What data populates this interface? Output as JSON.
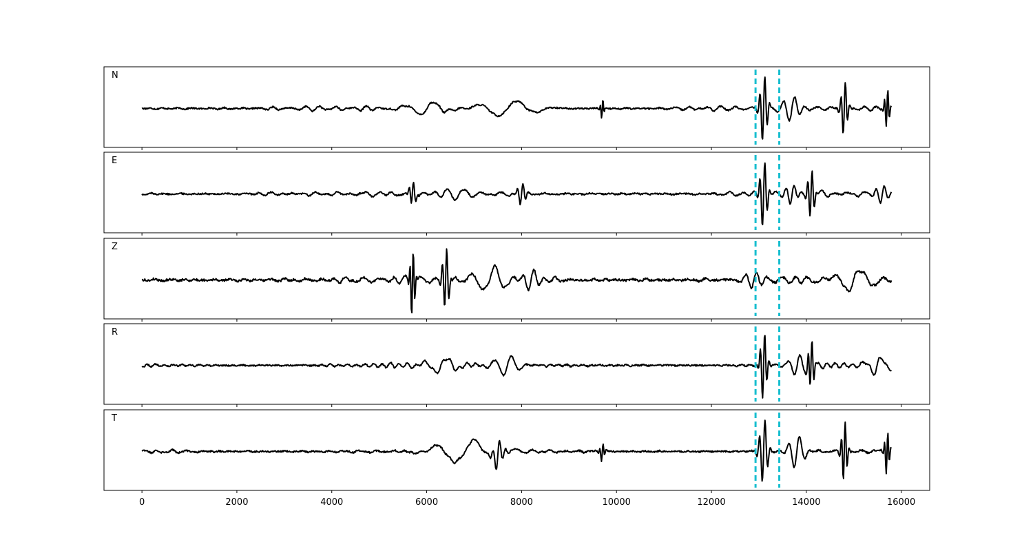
{
  "chart_data": {
    "type": "line",
    "title": "",
    "xlabel": "",
    "ylabel": "",
    "xlim": [
      -800,
      16600
    ],
    "x_ticks": [
      0,
      2000,
      4000,
      6000,
      8000,
      10000,
      12000,
      14000,
      16000
    ],
    "x_tick_labels": [
      "0",
      "2000",
      "4000",
      "6000",
      "8000",
      "10000",
      "12000",
      "14000",
      "16000"
    ],
    "shared_x_axis": true,
    "grid": false,
    "legend": "none",
    "trace_color": "#000000",
    "marker_color": "#17becf",
    "vertical_markers": [
      12930,
      13430
    ],
    "sample_count": 15800,
    "panels": [
      {
        "label": "N",
        "noise_amplitude": 0.08,
        "features": [
          {
            "x": 6000,
            "amp": 0.18,
            "width": 500
          },
          {
            "x": 7700,
            "amp": 0.22,
            "width": 700
          },
          {
            "x": 9700,
            "amp": 0.28,
            "width": 40
          },
          {
            "x": 13100,
            "amp": 0.95,
            "width": 90
          },
          {
            "x": 13700,
            "amp": 0.35,
            "width": 200
          },
          {
            "x": 14800,
            "amp": 0.75,
            "width": 80
          },
          {
            "x": 15700,
            "amp": 0.55,
            "width": 60
          }
        ]
      },
      {
        "label": "E",
        "noise_amplitude": 0.08,
        "features": [
          {
            "x": 5700,
            "amp": 0.32,
            "width": 80
          },
          {
            "x": 6700,
            "amp": 0.22,
            "width": 300
          },
          {
            "x": 8000,
            "amp": 0.3,
            "width": 100
          },
          {
            "x": 13100,
            "amp": 0.95,
            "width": 90
          },
          {
            "x": 13700,
            "amp": 0.3,
            "width": 150
          },
          {
            "x": 14100,
            "amp": 0.7,
            "width": 80
          },
          {
            "x": 15600,
            "amp": 0.25,
            "width": 150
          }
        ]
      },
      {
        "label": "Z",
        "noise_amplitude": 0.12,
        "features": [
          {
            "x": 5700,
            "amp": 0.95,
            "width": 60
          },
          {
            "x": 6400,
            "amp": 0.9,
            "width": 80
          },
          {
            "x": 7300,
            "amp": 0.35,
            "width": 400
          },
          {
            "x": 8200,
            "amp": 0.3,
            "width": 200
          },
          {
            "x": 12900,
            "amp": 0.2,
            "width": 200
          },
          {
            "x": 15000,
            "amp": 0.28,
            "width": 500
          }
        ]
      },
      {
        "label": "R",
        "noise_amplitude": 0.08,
        "features": [
          {
            "x": 6300,
            "amp": 0.22,
            "width": 400
          },
          {
            "x": 7700,
            "amp": 0.28,
            "width": 300
          },
          {
            "x": 13100,
            "amp": 0.95,
            "width": 80
          },
          {
            "x": 13800,
            "amp": 0.3,
            "width": 200
          },
          {
            "x": 14100,
            "amp": 0.72,
            "width": 70
          },
          {
            "x": 15500,
            "amp": 0.25,
            "width": 300
          }
        ]
      },
      {
        "label": "T",
        "noise_amplitude": 0.09,
        "features": [
          {
            "x": 6800,
            "amp": 0.32,
            "width": 700
          },
          {
            "x": 7500,
            "amp": 0.42,
            "width": 120
          },
          {
            "x": 9700,
            "amp": 0.25,
            "width": 60
          },
          {
            "x": 13100,
            "amp": 0.9,
            "width": 100
          },
          {
            "x": 13800,
            "amp": 0.45,
            "width": 200
          },
          {
            "x": 14800,
            "amp": 0.85,
            "width": 70
          },
          {
            "x": 15700,
            "amp": 0.6,
            "width": 60
          }
        ]
      }
    ]
  }
}
